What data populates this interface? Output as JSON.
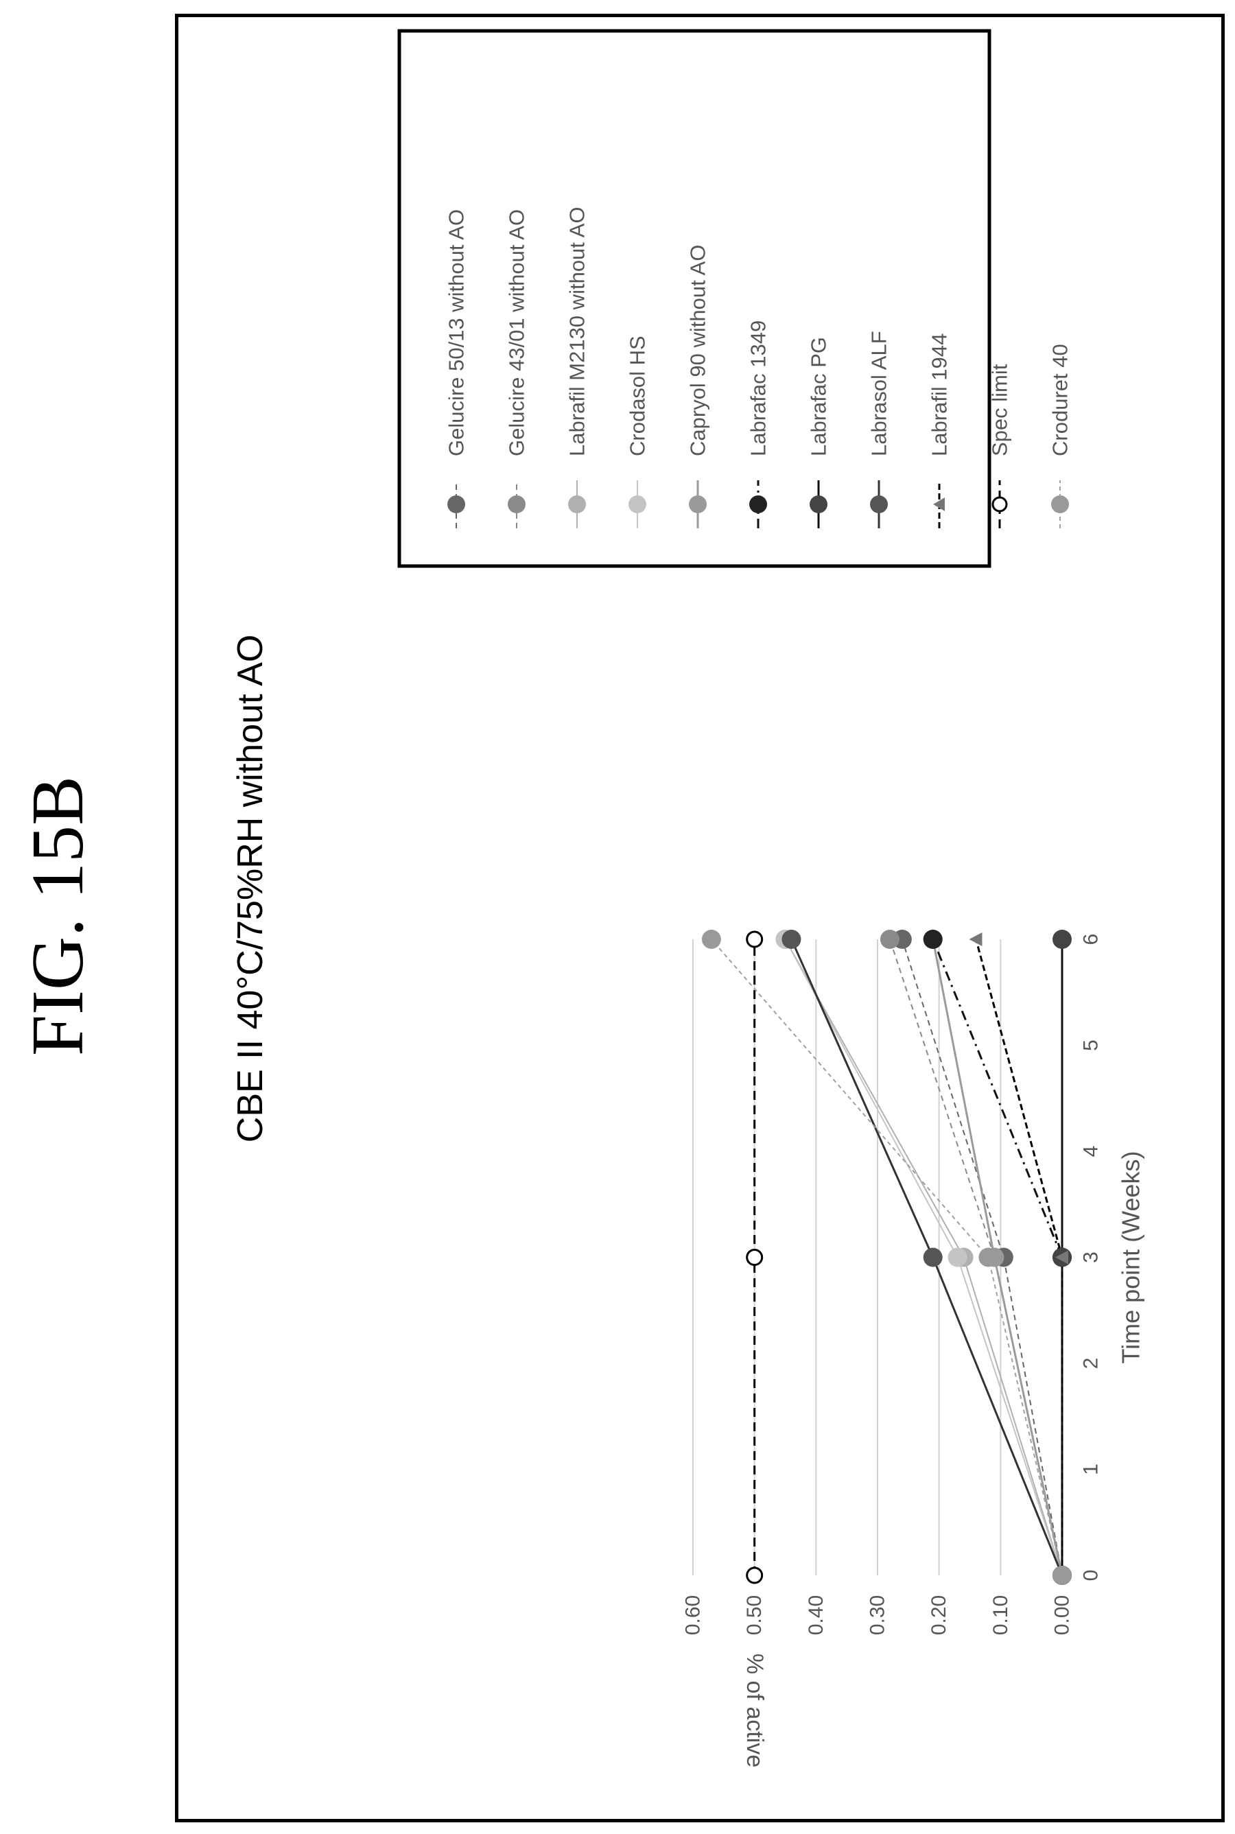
{
  "figure_label": "FIG. 15B",
  "chart_data": {
    "type": "line",
    "title": "CBE II  40°C/75%RH without AO",
    "xlabel": "Time point (Weeks)",
    "ylabel": "% of active",
    "xlim": [
      0,
      6
    ],
    "ylim": [
      0,
      0.6
    ],
    "x_ticks": [
      "0",
      "1",
      "2",
      "3",
      "4",
      "5",
      "6"
    ],
    "y_ticks": [
      "0.00",
      "0.10",
      "0.20",
      "0.30",
      "0.40",
      "0.50",
      "0.60"
    ],
    "grid": "horizontal",
    "legend_position": "right",
    "orientation": "rotated -90° on page",
    "x": [
      0,
      3,
      6
    ],
    "series": [
      {
        "name": "Gelucire 50/13 without AO",
        "values": [
          0.0,
          0.095,
          0.26
        ],
        "color": "#666666",
        "dash": "8,6",
        "marker": "filled",
        "marker_color": "#666666",
        "width": 2
      },
      {
        "name": "Gelucire 43/01 without AO",
        "values": [
          0.0,
          0.11,
          0.28
        ],
        "color": "#8a8a8a",
        "dash": "8,6",
        "marker": "filled",
        "marker_color": "#8a8a8a",
        "width": 2
      },
      {
        "name": "Labrafil M2130 without AO",
        "values": [
          0.0,
          0.16,
          0.45
        ],
        "color": "#b0b0b0",
        "dash": "",
        "marker": "filled",
        "marker_color": "#b0b0b0",
        "width": 2
      },
      {
        "name": "Crodasol HS",
        "values": [
          0.0,
          0.17,
          0.45
        ],
        "color": "#c4c4c4",
        "dash": "",
        "marker": "filled",
        "marker_color": "#c4c4c4",
        "width": 2
      },
      {
        "name": "Capryol 90 without AO",
        "values": [
          0.0,
          0.11,
          0.21
        ],
        "color": "#9a9a9a",
        "dash": "",
        "marker": "filled",
        "marker_color": "#9a9a9a",
        "width": 3
      },
      {
        "name": "Labrafac 1349",
        "values": [
          0.0,
          0.0,
          0.21
        ],
        "color": "#111111",
        "dash": "14,7,3,7",
        "marker": "filled",
        "marker_color": "#222222",
        "width": 3
      },
      {
        "name": "Labrafac PG",
        "values": [
          0.0,
          0.0,
          0.0
        ],
        "color": "#111111",
        "dash": "",
        "marker": "filled",
        "marker_color": "#444444",
        "width": 3
      },
      {
        "name": "Labrasol ALF",
        "values": [
          0.0,
          0.21,
          0.44
        ],
        "color": "#333333",
        "dash": "",
        "marker": "filled",
        "marker_color": "#555555",
        "width": 3
      },
      {
        "name": "Labrafil 1944",
        "values": [
          0.0,
          0.0,
          0.14
        ],
        "color": "#000000",
        "dash": "9,5",
        "marker": "triangle",
        "marker_color": "#777777",
        "width": 3
      },
      {
        "name": "Spec limit",
        "values": [
          0.5,
          0.5,
          0.5
        ],
        "color": "#000000",
        "dash": "13,8",
        "marker": "open",
        "marker_color": "#000000",
        "width": 3
      },
      {
        "name": "Croduret 40",
        "values": [
          0.0,
          0.12,
          0.57
        ],
        "color": "#a0a0a0",
        "dash": "6,5",
        "marker": "filled",
        "marker_color": "#999999",
        "width": 2
      }
    ]
  }
}
